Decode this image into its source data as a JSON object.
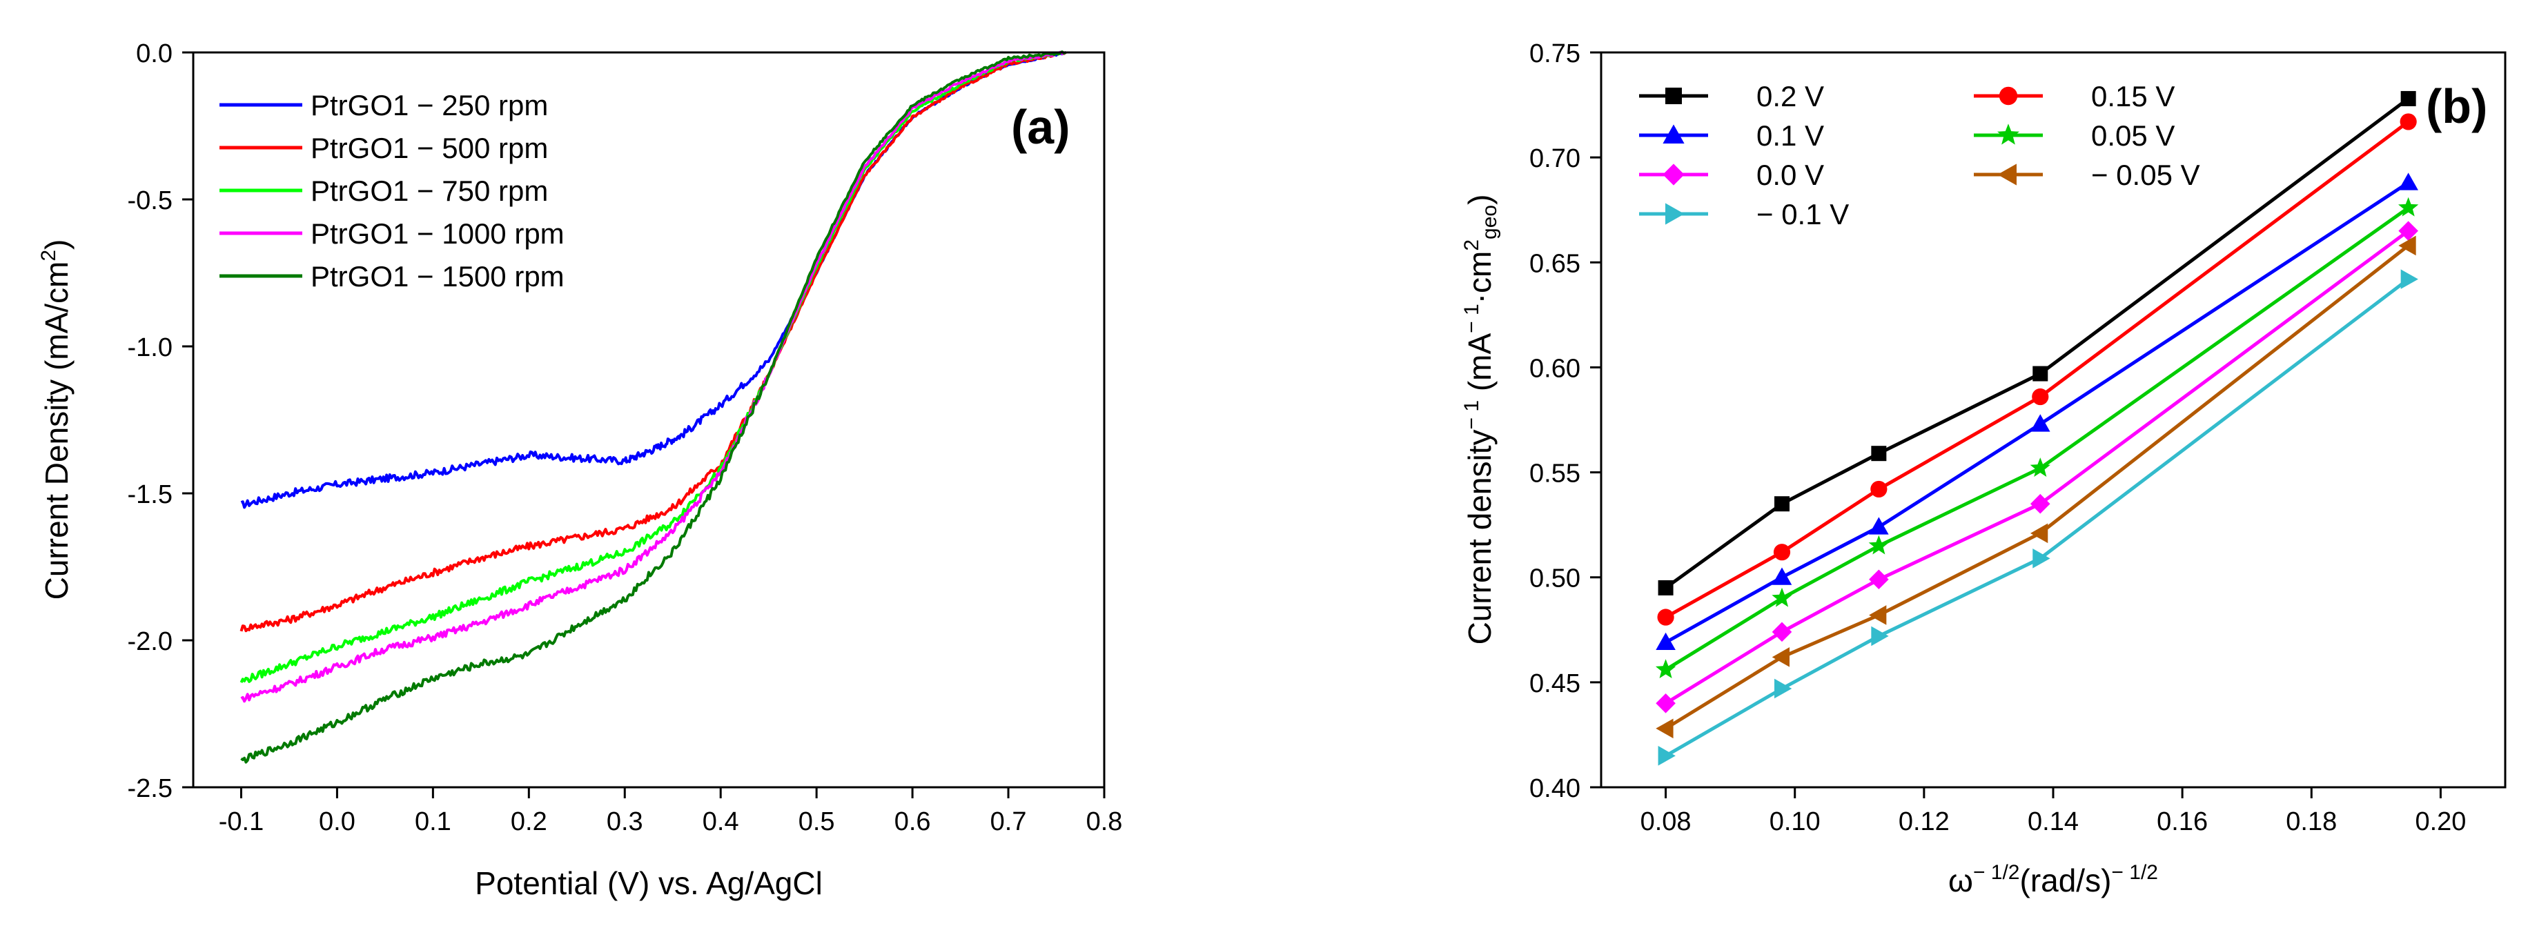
{
  "chart_data": [
    {
      "panel": "(a)",
      "type": "line",
      "xlabel": "Potential (V) vs. Ag/AgCl",
      "ylabel": "Current Density (mA/cm",
      "ylabel_sup": "2",
      "ylabel_end": ")",
      "xlim": [
        -0.15,
        0.8
      ],
      "ylim": [
        -2.5,
        0.0
      ],
      "xticks": [
        -0.1,
        0.0,
        0.1,
        0.2,
        0.3,
        0.4,
        0.5,
        0.6,
        0.7,
        0.8
      ],
      "xtick_labels": [
        "-0.1",
        "0.0",
        "0.1",
        "0.2",
        "0.3",
        "0.4",
        "0.5",
        "0.6",
        "0.7",
        "0.8"
      ],
      "yticks": [
        0.0,
        -0.5,
        -1.0,
        -1.5,
        -2.0,
        -2.5
      ],
      "ytick_labels": [
        "0.0",
        "-0.5",
        "-1.0",
        "-1.5",
        "-2.0",
        "-2.5"
      ],
      "legend_position": "top-left",
      "series": [
        {
          "name": "PtrGO1 − 250  rpm",
          "color": "#0000ff",
          "x": [
            -0.1,
            -0.05,
            0.0,
            0.05,
            0.1,
            0.15,
            0.2,
            0.25,
            0.3,
            0.33,
            0.36,
            0.4,
            0.45,
            0.5,
            0.55,
            0.6,
            0.65,
            0.7,
            0.76
          ],
          "y": [
            -1.54,
            -1.5,
            -1.47,
            -1.45,
            -1.43,
            -1.4,
            -1.37,
            -1.38,
            -1.39,
            -1.35,
            -1.3,
            -1.2,
            -1.05,
            -0.75,
            -0.42,
            -0.22,
            -0.12,
            -0.04,
            0.0
          ]
        },
        {
          "name": "PtrGO1 − 500  rpm",
          "color": "#ff0000",
          "x": [
            -0.1,
            -0.05,
            0.0,
            0.05,
            0.1,
            0.15,
            0.2,
            0.25,
            0.3,
            0.35,
            0.4,
            0.45,
            0.5,
            0.55,
            0.6,
            0.65,
            0.7,
            0.76
          ],
          "y": [
            -1.96,
            -1.93,
            -1.88,
            -1.82,
            -1.77,
            -1.72,
            -1.68,
            -1.65,
            -1.62,
            -1.55,
            -1.4,
            -1.1,
            -0.75,
            -0.42,
            -0.22,
            -0.12,
            -0.04,
            0.0
          ]
        },
        {
          "name": "PtrGO1 − 750  rpm",
          "color": "#00ff00",
          "x": [
            -0.1,
            -0.05,
            0.0,
            0.05,
            0.1,
            0.15,
            0.2,
            0.25,
            0.3,
            0.35,
            0.4,
            0.45,
            0.5,
            0.55,
            0.6,
            0.65,
            0.7,
            0.76
          ],
          "y": [
            -2.14,
            -2.08,
            -2.02,
            -1.97,
            -1.92,
            -1.86,
            -1.8,
            -1.75,
            -1.7,
            -1.6,
            -1.42,
            -1.1,
            -0.73,
            -0.4,
            -0.2,
            -0.11,
            -0.03,
            0.0
          ]
        },
        {
          "name": "PtrGO1 − 1000 rpm",
          "color": "#ff00ff",
          "x": [
            -0.1,
            -0.05,
            0.0,
            0.05,
            0.1,
            0.15,
            0.2,
            0.25,
            0.3,
            0.35,
            0.4,
            0.45,
            0.5,
            0.55,
            0.6,
            0.65,
            0.7,
            0.76
          ],
          "y": [
            -2.2,
            -2.15,
            -2.09,
            -2.03,
            -1.99,
            -1.94,
            -1.88,
            -1.82,
            -1.76,
            -1.63,
            -1.43,
            -1.1,
            -0.72,
            -0.39,
            -0.19,
            -0.1,
            -0.03,
            0.0
          ]
        },
        {
          "name": "PtrGO1 − 1500 rpm",
          "color": "#007a00",
          "x": [
            -0.1,
            -0.05,
            0.0,
            0.05,
            0.1,
            0.15,
            0.2,
            0.25,
            0.3,
            0.35,
            0.4,
            0.45,
            0.5,
            0.55,
            0.6,
            0.65,
            0.7,
            0.76
          ],
          "y": [
            -2.41,
            -2.35,
            -2.28,
            -2.2,
            -2.13,
            -2.08,
            -2.05,
            -1.95,
            -1.86,
            -1.7,
            -1.45,
            -1.1,
            -0.7,
            -0.37,
            -0.18,
            -0.09,
            -0.02,
            0.0
          ]
        }
      ]
    },
    {
      "panel": "(b)",
      "type": "line",
      "xlabel_base": "ω",
      "xlabel_sup1": "− 1/2",
      "xlabel_mid": "(rad/s)",
      "xlabel_sup2": "− 1/2",
      "ylabel_base": "Current density",
      "ylabel_sup1": "− 1",
      "ylabel_mid1": " (mA",
      "ylabel_sup2": "− 1",
      "ylabel_mid2": "·cm",
      "ylabel_sup3": "2",
      "ylabel_sub": "geo",
      "ylabel_end": ")",
      "xlim": [
        0.07,
        0.21
      ],
      "ylim": [
        0.4,
        0.75
      ],
      "xticks": [
        0.08,
        0.1,
        0.12,
        0.14,
        0.16,
        0.18,
        0.2
      ],
      "xtick_labels": [
        "0.08",
        "0.10",
        "0.12",
        "0.14",
        "0.16",
        "0.18",
        "0.20"
      ],
      "yticks": [
        0.4,
        0.45,
        0.5,
        0.55,
        0.6,
        0.65,
        0.7,
        0.75
      ],
      "ytick_labels": [
        "0.40",
        "0.45",
        "0.50",
        "0.55",
        "0.60",
        "0.65",
        "0.70",
        "0.75"
      ],
      "legend_position": "top-left",
      "x": [
        0.08,
        0.098,
        0.113,
        0.138,
        0.195
      ],
      "series": [
        {
          "name": "0.2 V",
          "color": "#000000",
          "marker": "square",
          "values": [
            0.495,
            0.535,
            0.559,
            0.597,
            0.728
          ]
        },
        {
          "name": "0.15 V",
          "color": "#ff0000",
          "marker": "circle",
          "values": [
            0.481,
            0.512,
            0.542,
            0.586,
            0.717
          ]
        },
        {
          "name": "0.1 V",
          "color": "#0000ff",
          "marker": "triangle-up",
          "values": [
            0.469,
            0.5,
            0.524,
            0.573,
            0.688
          ]
        },
        {
          "name": "0.05 V",
          "color": "#00cc00",
          "marker": "star",
          "values": [
            0.456,
            0.49,
            0.515,
            0.552,
            0.676
          ]
        },
        {
          "name": "0.0 V",
          "color": "#ff00ff",
          "marker": "diamond",
          "values": [
            0.44,
            0.474,
            0.499,
            0.535,
            0.665
          ]
        },
        {
          "name": "− 0.05 V",
          "color": "#b35900",
          "marker": "triangle-left",
          "values": [
            0.428,
            0.462,
            0.482,
            0.521,
            0.658
          ]
        },
        {
          "name": "− 0.1 V",
          "color": "#33bbcc",
          "marker": "triangle-right",
          "values": [
            0.415,
            0.447,
            0.472,
            0.509,
            0.642
          ]
        }
      ]
    }
  ]
}
